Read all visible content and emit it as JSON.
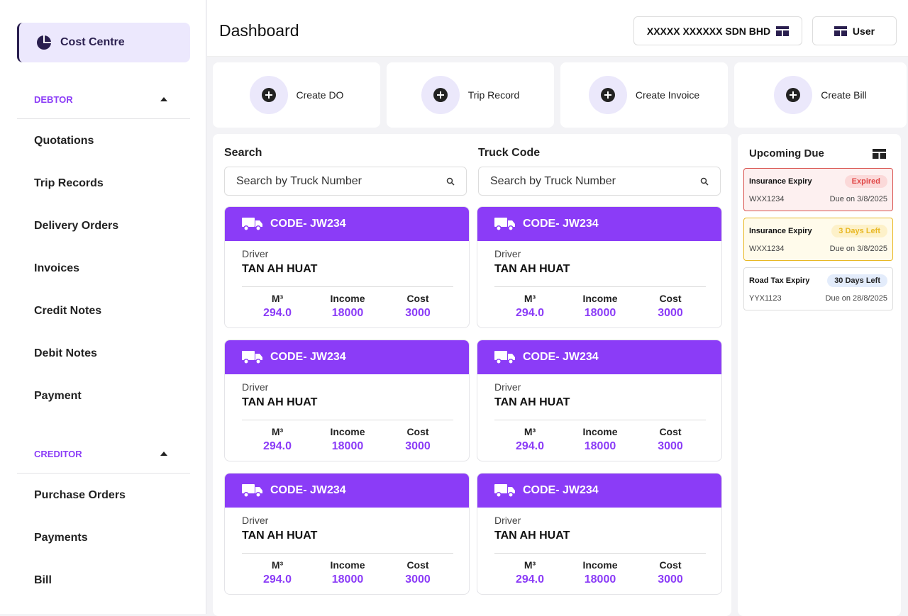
{
  "sidebar": {
    "active": "Cost Centre",
    "sections": [
      {
        "title": "DEBTOR",
        "items": [
          "Quotations",
          "Trip Records",
          "Delivery Orders",
          "Invoices",
          "Credit Notes",
          "Debit Notes",
          "Payment"
        ]
      },
      {
        "title": "CREDITOR",
        "items": [
          "Purchase Orders",
          "Payments",
          "Bill"
        ]
      }
    ]
  },
  "header": {
    "title": "Dashboard",
    "company": "XXXXX XXXXXX SDN BHD",
    "user": "User"
  },
  "actions": [
    "Create DO",
    "Trip Record",
    "Create Invoice",
    "Create Bill"
  ],
  "search": {
    "label": "Search",
    "placeholder": "Search by Truck Number"
  },
  "truck_code": {
    "label": "Truck Code",
    "placeholder": "Search by Truck Number"
  },
  "trucks": [
    {
      "code": "CODE- JW234",
      "driver_label": "Driver",
      "driver": "TAN AH HUAT",
      "stats": [
        {
          "label": "M³",
          "value": "294.0"
        },
        {
          "label": "Income",
          "value": "18000"
        },
        {
          "label": "Cost",
          "value": "3000"
        }
      ]
    },
    {
      "code": "CODE- JW234",
      "driver_label": "Driver",
      "driver": "TAN AH HUAT",
      "stats": [
        {
          "label": "M³",
          "value": "294.0"
        },
        {
          "label": "Income",
          "value": "18000"
        },
        {
          "label": "Cost",
          "value": "3000"
        }
      ]
    },
    {
      "code": "CODE- JW234",
      "driver_label": "Driver",
      "driver": "TAN AH HUAT",
      "stats": [
        {
          "label": "M³",
          "value": "294.0"
        },
        {
          "label": "Income",
          "value": "18000"
        },
        {
          "label": "Cost",
          "value": "3000"
        }
      ]
    },
    {
      "code": "CODE- JW234",
      "driver_label": "Driver",
      "driver": "TAN AH HUAT",
      "stats": [
        {
          "label": "M³",
          "value": "294.0"
        },
        {
          "label": "Income",
          "value": "18000"
        },
        {
          "label": "Cost",
          "value": "3000"
        }
      ]
    },
    {
      "code": "CODE- JW234",
      "driver_label": "Driver",
      "driver": "TAN AH HUAT",
      "stats": [
        {
          "label": "M³",
          "value": "294.0"
        },
        {
          "label": "Income",
          "value": "18000"
        },
        {
          "label": "Cost",
          "value": "3000"
        }
      ]
    },
    {
      "code": "CODE- JW234",
      "driver_label": "Driver",
      "driver": "TAN AH HUAT",
      "stats": [
        {
          "label": "M³",
          "value": "294.0"
        },
        {
          "label": "Income",
          "value": "18000"
        },
        {
          "label": "Cost",
          "value": "3000"
        }
      ]
    }
  ],
  "upcoming": {
    "title": "Upcoming Due",
    "items": [
      {
        "title": "Insurance Expiry",
        "status": "Expired",
        "plate": "WXX1234",
        "due": "Due on 3/8/2025"
      },
      {
        "title": "Insurance Expiry",
        "status": "3 Days Left",
        "plate": "WXX1234",
        "due": "Due on 3/8/2025"
      },
      {
        "title": "Road Tax Expiry",
        "status": "30 Days Left",
        "plate": "YYX1123",
        "due": "Due on 28/8/2025"
      }
    ]
  }
}
